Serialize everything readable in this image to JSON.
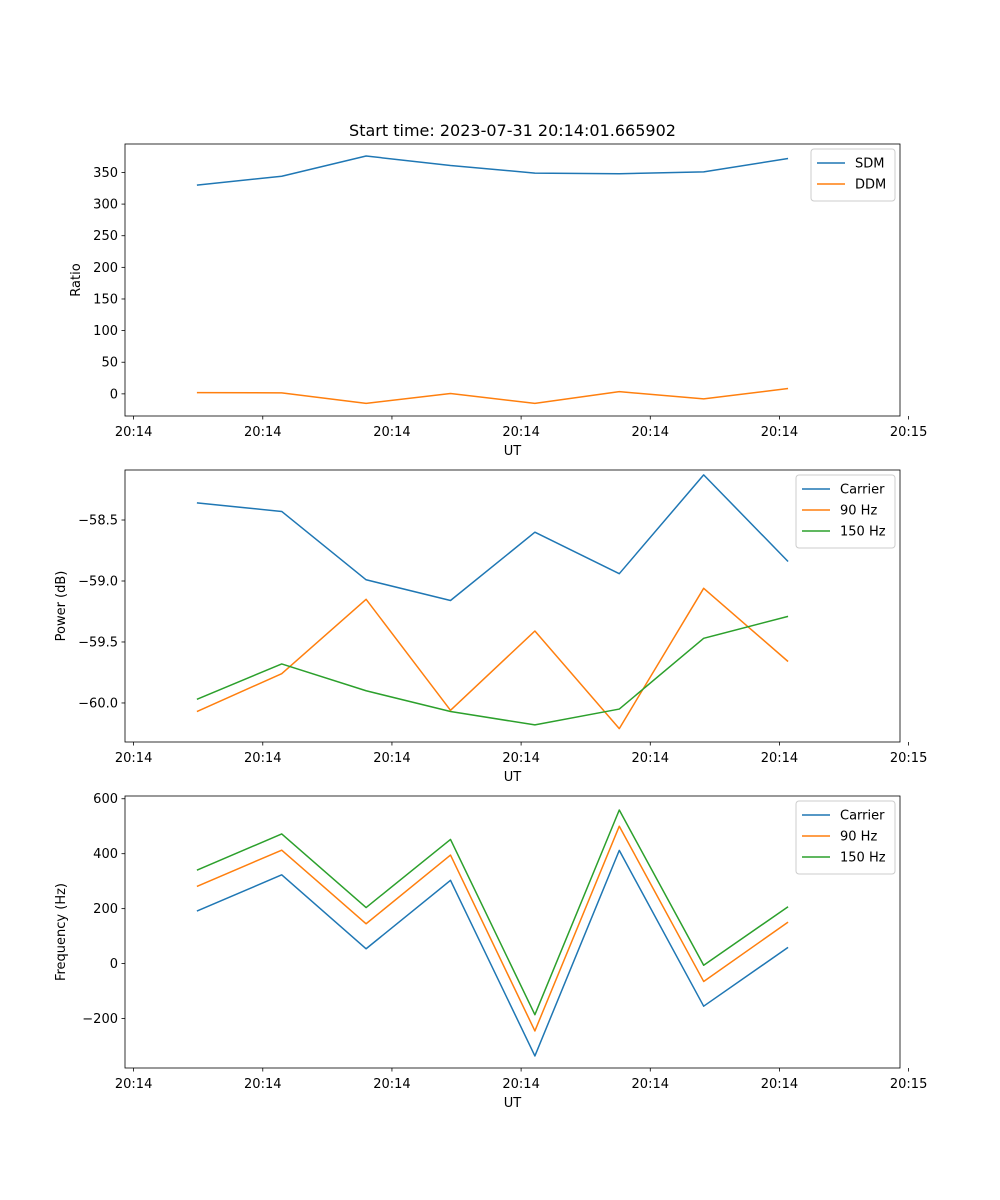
{
  "figure": {
    "title": "Start time: 2023-07-31 20:14:01.665902"
  },
  "colors": {
    "blue": "#1f77b4",
    "orange": "#ff7f0e",
    "green": "#2ca02c"
  },
  "chart_data": [
    {
      "type": "line",
      "title": "Start time: 2023-07-31 20:14:01.665902",
      "xlabel": "UT",
      "ylabel": "Ratio",
      "xlim": [
        0,
        9
      ],
      "ylim": [
        -35,
        395
      ],
      "x_tick_values": [
        0.1,
        1.6,
        3.1,
        4.6,
        6.1,
        7.6,
        9.1
      ],
      "x_tick_labels": [
        "20:14",
        "20:14",
        "20:14",
        "20:14",
        "20:14",
        "20:14",
        "20:15"
      ],
      "y_ticks": [
        0,
        50,
        100,
        150,
        200,
        250,
        300,
        350
      ],
      "y_tick_labels": [
        "0",
        "50",
        "100",
        "150",
        "200",
        "250",
        "300",
        "350"
      ],
      "x": [
        0.835,
        1.82,
        2.8,
        3.78,
        4.76,
        5.74,
        6.72,
        7.7
      ],
      "series": [
        {
          "name": "SDM",
          "color": "#1f77b4",
          "values": [
            330,
            344,
            376,
            361,
            349,
            348,
            351,
            372
          ]
        },
        {
          "name": "DDM",
          "color": "#ff7f0e",
          "values": [
            2,
            1.5,
            -15,
            0.5,
            -15,
            3.5,
            -8,
            8.5
          ]
        }
      ],
      "legend": "top-right"
    },
    {
      "type": "line",
      "title": "",
      "xlabel": "UT",
      "ylabel": "Power (dB)",
      "xlim": [
        0,
        9
      ],
      "ylim": [
        -60.32,
        -58.09
      ],
      "x_tick_values": [
        0.1,
        1.6,
        3.1,
        4.6,
        6.1,
        7.6,
        9.1
      ],
      "x_tick_labels": [
        "20:14",
        "20:14",
        "20:14",
        "20:14",
        "20:14",
        "20:14",
        "20:15"
      ],
      "y_ticks": [
        -60.0,
        -59.5,
        -59.0,
        -58.5
      ],
      "y_tick_labels": [
        "−60.0",
        "−59.5",
        "−59.0",
        "−58.5"
      ],
      "x": [
        0.835,
        1.82,
        2.8,
        3.78,
        4.76,
        5.74,
        6.72,
        7.7
      ],
      "series": [
        {
          "name": "Carrier",
          "color": "#1f77b4",
          "values": [
            -58.36,
            -58.43,
            -58.99,
            -59.16,
            -58.6,
            -58.94,
            -58.13,
            -58.84
          ]
        },
        {
          "name": "90 Hz",
          "color": "#ff7f0e",
          "values": [
            -60.07,
            -59.76,
            -59.15,
            -60.06,
            -59.41,
            -60.21,
            -59.06,
            -59.66
          ]
        },
        {
          "name": "150 Hz",
          "color": "#2ca02c",
          "values": [
            -59.97,
            -59.68,
            -59.9,
            -60.07,
            -60.18,
            -60.05,
            -59.47,
            -59.29
          ]
        }
      ],
      "legend": "top-right"
    },
    {
      "type": "line",
      "title": "",
      "xlabel": "UT",
      "ylabel": "Frequency (Hz)",
      "xlim": [
        0,
        9
      ],
      "ylim": [
        -380,
        610
      ],
      "x_tick_values": [
        0.1,
        1.6,
        3.1,
        4.6,
        6.1,
        7.6,
        9.1
      ],
      "x_tick_labels": [
        "20:14",
        "20:14",
        "20:14",
        "20:14",
        "20:14",
        "20:14",
        "20:15"
      ],
      "y_ticks": [
        -200,
        0,
        200,
        400,
        600
      ],
      "y_tick_labels": [
        "−200",
        "0",
        "200",
        "400",
        "600"
      ],
      "x": [
        0.835,
        1.82,
        2.8,
        3.78,
        4.76,
        5.74,
        6.72,
        7.7
      ],
      "series": [
        {
          "name": "Carrier",
          "color": "#1f77b4",
          "values": [
            191,
            323,
            54,
            303,
            -336,
            412,
            -155,
            59
          ]
        },
        {
          "name": "90 Hz",
          "color": "#ff7f0e",
          "values": [
            281,
            413,
            145,
            395,
            -245,
            500,
            -65,
            151
          ]
        },
        {
          "name": "150 Hz",
          "color": "#2ca02c",
          "values": [
            340,
            472,
            204,
            452,
            -186,
            559,
            -6,
            207
          ]
        }
      ],
      "legend": "top-right"
    }
  ]
}
